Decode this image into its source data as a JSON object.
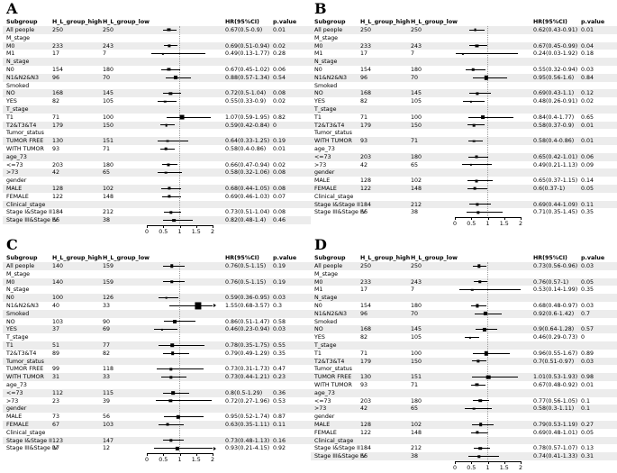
{
  "columns": {
    "subgroup": "Subgroup",
    "high": "H_L_group_high",
    "low": "H_L_group_low",
    "hr": "HR(95%CI)",
    "p": "p.value"
  },
  "axis": {
    "ticks": [
      "0",
      "0.5",
      "1",
      "1.5",
      "2"
    ],
    "min": 0,
    "max": 2,
    "reference_line": 1
  },
  "chart_data": [
    {
      "type": "scatter",
      "subtype": "forest",
      "panel": "A",
      "xlim": [
        0,
        2
      ],
      "rows": [
        {
          "label": "All people",
          "high": "250",
          "low": "250",
          "est": 0.67,
          "lo": 0.5,
          "hi": 0.9,
          "hr": "0.67(0.5-0.9)",
          "p": "0.01"
        },
        {
          "label": "M_stage",
          "section": true
        },
        {
          "label": "M0",
          "high": "233",
          "low": "243",
          "est": 0.69,
          "lo": 0.51,
          "hi": 0.94,
          "hr": "0.69(0.51-0.94)",
          "p": "0.02"
        },
        {
          "label": "M1",
          "high": "17",
          "low": "7",
          "est": 0.49,
          "lo": 0.13,
          "hi": 1.77,
          "hr": "0.49(0.13-1.77)",
          "p": "0.28"
        },
        {
          "label": "N_stage",
          "section": true
        },
        {
          "label": "N0",
          "high": "154",
          "low": "180",
          "est": 0.67,
          "lo": 0.45,
          "hi": 1.02,
          "hr": "0.67(0.45-1.02)",
          "p": "0.06"
        },
        {
          "label": "N1&N2&N3",
          "high": "96",
          "low": "70",
          "est": 0.88,
          "lo": 0.57,
          "hi": 1.34,
          "hr": "0.88(0.57-1.34)",
          "p": "0.54"
        },
        {
          "label": "Smoked",
          "section": true
        },
        {
          "label": "NO",
          "high": "168",
          "low": "145",
          "est": 0.72,
          "lo": 0.5,
          "hi": 1.04,
          "hr": "0.72(0.5-1.04)",
          "p": "0.08"
        },
        {
          "label": "YES",
          "high": "82",
          "low": "105",
          "est": 0.55,
          "lo": 0.33,
          "hi": 0.9,
          "hr": "0.55(0.33-0.9)",
          "p": "0.02"
        },
        {
          "label": "T_stage",
          "section": true
        },
        {
          "label": "T1",
          "high": "71",
          "low": "100",
          "est": 1.07,
          "lo": 0.59,
          "hi": 1.95,
          "hr": "1.07(0.59-1.95)",
          "p": "0.82"
        },
        {
          "label": "T2&T3&T4",
          "high": "179",
          "low": "150",
          "est": 0.59,
          "lo": 0.42,
          "hi": 0.84,
          "hr": "0.59(0.42-0.84)",
          "p": "0"
        },
        {
          "label": "Tumor_status",
          "section": true
        },
        {
          "label": "TUMOR FREE",
          "high": "130",
          "low": "151",
          "est": 0.64,
          "lo": 0.33,
          "hi": 1.25,
          "hr": "0.64(0.33-1.25)",
          "p": "0.19"
        },
        {
          "label": "WITH TUMOR",
          "high": "93",
          "low": "71",
          "est": 0.58,
          "lo": 0.4,
          "hi": 0.86,
          "hr": "0.58(0.4-0.86)",
          "p": "0.01"
        },
        {
          "label": "age_73",
          "section": true
        },
        {
          "label": "<=73",
          "high": "203",
          "low": "180",
          "est": 0.66,
          "lo": 0.47,
          "hi": 0.94,
          "hr": "0.66(0.47-0.94)",
          "p": "0.02"
        },
        {
          "label": ">73",
          "high": "42",
          "low": "65",
          "est": 0.58,
          "lo": 0.32,
          "hi": 1.06,
          "hr": "0.58(0.32-1.06)",
          "p": "0.08"
        },
        {
          "label": "gender",
          "section": true
        },
        {
          "label": "MALE",
          "high": "128",
          "low": "102",
          "est": 0.68,
          "lo": 0.44,
          "hi": 1.05,
          "hr": "0.68(0.44-1.05)",
          "p": "0.08"
        },
        {
          "label": "FEMALE",
          "high": "122",
          "low": "148",
          "est": 0.69,
          "lo": 0.46,
          "hi": 1.03,
          "hr": "0.69(0.46-1.03)",
          "p": "0.07"
        },
        {
          "label": "Clinical_stage",
          "section": true
        },
        {
          "label": "Stage I&Stage II",
          "high": "184",
          "low": "212",
          "est": 0.73,
          "lo": 0.51,
          "hi": 1.04,
          "hr": "0.73(0.51-1.04)",
          "p": "0.08"
        },
        {
          "label": "Stage III&Stage IV",
          "high": "66",
          "low": "38",
          "est": 0.82,
          "lo": 0.48,
          "hi": 1.4,
          "hr": "0.82(0.48-1.4)",
          "p": "0.46"
        }
      ]
    },
    {
      "type": "scatter",
      "subtype": "forest",
      "panel": "B",
      "xlim": [
        0,
        2
      ],
      "rows": [
        {
          "label": "All people",
          "high": "250",
          "low": "250",
          "est": 0.62,
          "lo": 0.43,
          "hi": 0.91,
          "hr": "0.62(0.43-0.91)",
          "p": "0.01"
        },
        {
          "label": "M_stage",
          "section": true
        },
        {
          "label": "M0",
          "high": "233",
          "low": "243",
          "est": 0.67,
          "lo": 0.45,
          "hi": 0.99,
          "hr": "0.67(0.45-0.99)",
          "p": "0.04"
        },
        {
          "label": "M1",
          "high": "17",
          "low": "7",
          "est": 0.24,
          "lo": 0.03,
          "hi": 1.92,
          "hr": "0.24(0.03-1.92)",
          "p": "0.18"
        },
        {
          "label": "N_stage",
          "section": true
        },
        {
          "label": "N0",
          "high": "154",
          "low": "180",
          "est": 0.55,
          "lo": 0.32,
          "hi": 0.94,
          "hr": "0.55(0.32-0.94)",
          "p": "0.03"
        },
        {
          "label": "N1&N2&N3",
          "high": "96",
          "low": "70",
          "est": 0.95,
          "lo": 0.56,
          "hi": 1.6,
          "hr": "0.95(0.56-1.6)",
          "p": "0.84"
        },
        {
          "label": "Smoked",
          "section": true
        },
        {
          "label": "NO",
          "high": "168",
          "low": "145",
          "est": 0.69,
          "lo": 0.43,
          "hi": 1.1,
          "hr": "0.69(0.43-1.1)",
          "p": "0.12"
        },
        {
          "label": "YES",
          "high": "82",
          "low": "105",
          "est": 0.48,
          "lo": 0.26,
          "hi": 0.91,
          "hr": "0.48(0.26-0.91)",
          "p": "0.02"
        },
        {
          "label": "T_stage",
          "section": true
        },
        {
          "label": "T1",
          "high": "71",
          "low": "100",
          "est": 0.84,
          "lo": 0.4,
          "hi": 1.77,
          "hr": "0.84(0.4-1.77)",
          "p": "0.65"
        },
        {
          "label": "T2&T3&T4",
          "high": "179",
          "low": "150",
          "est": 0.58,
          "lo": 0.37,
          "hi": 0.9,
          "hr": "0.58(0.37-0.9)",
          "p": "0.01"
        },
        {
          "label": "Tumor_status",
          "section": true
        },
        {
          "label": "WITH TUMOR",
          "high": "93",
          "low": "71",
          "est": 0.58,
          "lo": 0.4,
          "hi": 0.86,
          "hr": "0.58(0.4-0.86)",
          "p": "0.01"
        },
        {
          "label": "age_73",
          "section": true
        },
        {
          "label": "<=73",
          "high": "203",
          "low": "180",
          "est": 0.65,
          "lo": 0.42,
          "hi": 1.01,
          "hr": "0.65(0.42-1.01)",
          "p": "0.06"
        },
        {
          "label": ">73",
          "high": "42",
          "low": "65",
          "est": 0.49,
          "lo": 0.21,
          "hi": 1.13,
          "hr": "0.49(0.21-1.13)",
          "p": "0.09"
        },
        {
          "label": "gender",
          "section": true
        },
        {
          "label": "MALE",
          "high": "128",
          "low": "102",
          "est": 0.65,
          "lo": 0.37,
          "hi": 1.15,
          "hr": "0.65(0.37-1.15)",
          "p": "0.14"
        },
        {
          "label": "FEMALE",
          "high": "122",
          "low": "148",
          "est": 0.6,
          "lo": 0.37,
          "hi": 1.0,
          "hr": "0.6(0.37-1)",
          "p": "0.05"
        },
        {
          "label": "Clinical_stage",
          "section": true
        },
        {
          "label": "Stage I&Stage II",
          "high": "184",
          "low": "212",
          "est": 0.69,
          "lo": 0.44,
          "hi": 1.09,
          "hr": "0.69(0.44-1.09)",
          "p": "0.11"
        },
        {
          "label": "Stage III&Stage IV",
          "high": "66",
          "low": "38",
          "est": 0.71,
          "lo": 0.35,
          "hi": 1.45,
          "hr": "0.71(0.35-1.45)",
          "p": "0.35"
        }
      ]
    },
    {
      "type": "scatter",
      "subtype": "forest",
      "panel": "C",
      "xlim": [
        0,
        2
      ],
      "rows": [
        {
          "label": "All people",
          "high": "140",
          "low": "159",
          "est": 0.76,
          "lo": 0.5,
          "hi": 1.15,
          "hr": "0.76(0.5-1.15)",
          "p": "0.19"
        },
        {
          "label": "M_stage",
          "section": true
        },
        {
          "label": "M0",
          "high": "140",
          "low": "159",
          "est": 0.76,
          "lo": 0.5,
          "hi": 1.15,
          "hr": "0.76(0.5-1.15)",
          "p": "0.19"
        },
        {
          "label": "N_stage",
          "section": true
        },
        {
          "label": "N0",
          "high": "100",
          "low": "126",
          "est": 0.59,
          "lo": 0.36,
          "hi": 0.95,
          "hr": "0.59(0.36-0.95)",
          "p": "0.03"
        },
        {
          "label": "N1&N2&N3",
          "high": "40",
          "low": "33",
          "est": 1.55,
          "lo": 0.68,
          "hi": 3.57,
          "hr": "1.55(0.68-3.57)",
          "p": "0.3"
        },
        {
          "label": "Smoked",
          "section": true
        },
        {
          "label": "NO",
          "high": "103",
          "low": "90",
          "est": 0.86,
          "lo": 0.51,
          "hi": 1.47,
          "hr": "0.86(0.51-1.47)",
          "p": "0.58"
        },
        {
          "label": "YES",
          "high": "37",
          "low": "69",
          "est": 0.46,
          "lo": 0.23,
          "hi": 0.94,
          "hr": "0.46(0.23-0.94)",
          "p": "0.03"
        },
        {
          "label": "T_stage",
          "section": true
        },
        {
          "label": "T1",
          "high": "51",
          "low": "77",
          "est": 0.78,
          "lo": 0.35,
          "hi": 1.75,
          "hr": "0.78(0.35-1.75)",
          "p": "0.55"
        },
        {
          "label": "T2&T3&T4",
          "high": "89",
          "low": "82",
          "est": 0.79,
          "lo": 0.49,
          "hi": 1.29,
          "hr": "0.79(0.49-1.29)",
          "p": "0.35"
        },
        {
          "label": "Tumor_status",
          "section": true
        },
        {
          "label": "TUMOR FREE",
          "high": "99",
          "low": "118",
          "est": 0.73,
          "lo": 0.31,
          "hi": 1.73,
          "hr": "0.73(0.31-1.73)",
          "p": "0.47"
        },
        {
          "label": "WITH TUMOR",
          "high": "31",
          "low": "33",
          "est": 0.73,
          "lo": 0.44,
          "hi": 1.21,
          "hr": "0.73(0.44-1.21)",
          "p": "0.23"
        },
        {
          "label": "age_73",
          "section": true
        },
        {
          "label": "<=73",
          "high": "112",
          "low": "115",
          "est": 0.8,
          "lo": 0.5,
          "hi": 1.29,
          "hr": "0.8(0.5-1.29)",
          "p": "0.36"
        },
        {
          "label": ">73",
          "high": "23",
          "low": "39",
          "est": 0.72,
          "lo": 0.27,
          "hi": 1.96,
          "hr": "0.72(0.27-1.96)",
          "p": "0.53"
        },
        {
          "label": "gender",
          "section": true
        },
        {
          "label": "MALE",
          "high": "73",
          "low": "56",
          "est": 0.95,
          "lo": 0.52,
          "hi": 1.74,
          "hr": "0.95(0.52-1.74)",
          "p": "0.87"
        },
        {
          "label": "FEMALE",
          "high": "67",
          "low": "103",
          "est": 0.63,
          "lo": 0.35,
          "hi": 1.11,
          "hr": "0.63(0.35-1.11)",
          "p": "0.11"
        },
        {
          "label": "Clinical_stage",
          "section": true
        },
        {
          "label": "Stage I&Stage II",
          "high": "123",
          "low": "147",
          "est": 0.73,
          "lo": 0.48,
          "hi": 1.13,
          "hr": "0.73(0.48-1.13)",
          "p": "0.16"
        },
        {
          "label": "Stage III&Stage IV",
          "high": "17",
          "low": "12",
          "est": 0.93,
          "lo": 0.21,
          "hi": 4.15,
          "hr": "0.93(0.21-4.15)",
          "p": "0.92"
        }
      ]
    },
    {
      "type": "scatter",
      "subtype": "forest",
      "panel": "D",
      "xlim": [
        0,
        2
      ],
      "rows": [
        {
          "label": "All people",
          "high": "250",
          "low": "250",
          "est": 0.73,
          "lo": 0.56,
          "hi": 0.96,
          "hr": "0.73(0.56-0.96)",
          "p": "0.03"
        },
        {
          "label": "M_stage",
          "section": true
        },
        {
          "label": "M0",
          "high": "233",
          "low": "243",
          "est": 0.76,
          "lo": 0.57,
          "hi": 1.0,
          "hr": "0.76(0.57-1)",
          "p": "0.05"
        },
        {
          "label": "M1",
          "high": "17",
          "low": "7",
          "est": 0.53,
          "lo": 0.14,
          "hi": 1.99,
          "hr": "0.53(0.14-1.99)",
          "p": "0.35"
        },
        {
          "label": "N_stage",
          "section": true
        },
        {
          "label": "N0",
          "high": "154",
          "low": "180",
          "est": 0.68,
          "lo": 0.48,
          "hi": 0.97,
          "hr": "0.68(0.48-0.97)",
          "p": "0.03"
        },
        {
          "label": "N1&N2&N3",
          "high": "96",
          "low": "70",
          "est": 0.92,
          "lo": 0.6,
          "hi": 1.42,
          "hr": "0.92(0.6-1.42)",
          "p": "0.7"
        },
        {
          "label": "Smoked",
          "section": true
        },
        {
          "label": "NO",
          "high": "168",
          "low": "145",
          "est": 0.9,
          "lo": 0.64,
          "hi": 1.28,
          "hr": "0.9(0.64-1.28)",
          "p": "0.57"
        },
        {
          "label": "YES",
          "high": "82",
          "low": "105",
          "est": 0.46,
          "lo": 0.29,
          "hi": 0.73,
          "hr": "0.46(0.29-0.73)",
          "p": "0"
        },
        {
          "label": "T_stage",
          "section": true
        },
        {
          "label": "T1",
          "high": "71",
          "low": "100",
          "est": 0.96,
          "lo": 0.55,
          "hi": 1.67,
          "hr": "0.96(0.55-1.67)",
          "p": "0.89"
        },
        {
          "label": "T2&T3&T4",
          "high": "179",
          "low": "150",
          "est": 0.7,
          "lo": 0.51,
          "hi": 0.97,
          "hr": "0.7(0.51-0.97)",
          "p": "0.03"
        },
        {
          "label": "Tumor_status",
          "section": true
        },
        {
          "label": "TUMOR FREE",
          "high": "130",
          "low": "151",
          "est": 1.01,
          "lo": 0.53,
          "hi": 1.93,
          "hr": "1.01(0.53-1.93)",
          "p": "0.98"
        },
        {
          "label": "WITH TUMOR",
          "high": "93",
          "low": "71",
          "est": 0.67,
          "lo": 0.48,
          "hi": 0.92,
          "hr": "0.67(0.48-0.92)",
          "p": "0.01"
        },
        {
          "label": "age_73",
          "section": true
        },
        {
          "label": "<=73",
          "high": "203",
          "low": "180",
          "est": 0.77,
          "lo": 0.56,
          "hi": 1.05,
          "hr": "0.77(0.56-1.05)",
          "p": "0.1"
        },
        {
          "label": ">73",
          "high": "42",
          "low": "65",
          "est": 0.58,
          "lo": 0.3,
          "hi": 1.11,
          "hr": "0.58(0.3-1.11)",
          "p": "0.1"
        },
        {
          "label": "gender",
          "section": true
        },
        {
          "label": "MALE",
          "high": "128",
          "low": "102",
          "est": 0.79,
          "lo": 0.53,
          "hi": 1.19,
          "hr": "0.79(0.53-1.19)",
          "p": "0.27"
        },
        {
          "label": "FEMALE",
          "high": "122",
          "low": "148",
          "est": 0.69,
          "lo": 0.48,
          "hi": 1.01,
          "hr": "0.69(0.48-1.01)",
          "p": "0.05"
        },
        {
          "label": "Clinical_stage",
          "section": true
        },
        {
          "label": "Stage I&Stage II",
          "high": "184",
          "low": "212",
          "est": 0.78,
          "lo": 0.57,
          "hi": 1.07,
          "hr": "0.78(0.57-1.07)",
          "p": "0.13"
        },
        {
          "label": "Stage III&Stage IV",
          "high": "66",
          "low": "38",
          "est": 0.74,
          "lo": 0.41,
          "hi": 1.33,
          "hr": "0.74(0.41-1.33)",
          "p": "0.31"
        }
      ]
    }
  ],
  "style": {
    "stripe_color": "#ececec",
    "marker_color": "#000000",
    "reference_line_color": "#9a9a9a",
    "text_color": "#000000"
  }
}
